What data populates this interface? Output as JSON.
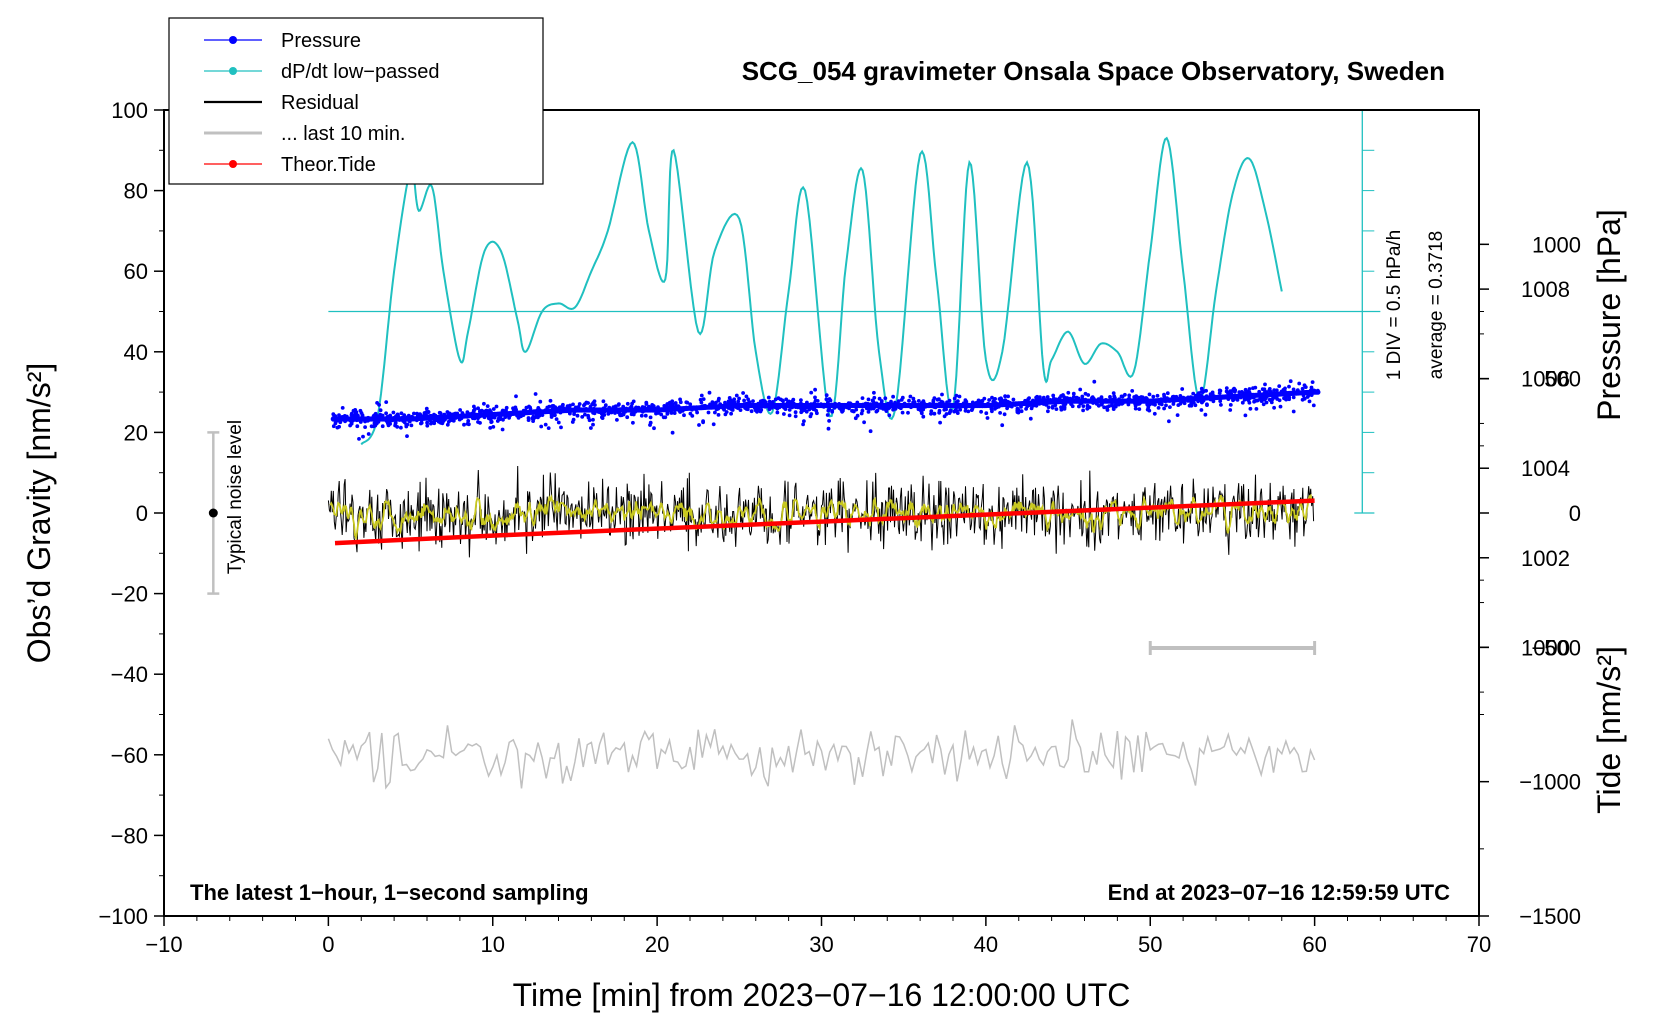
{
  "chart_data": {
    "type": "line",
    "title": "SCG_054 gravimeter Onsala Space Observatory, Sweden",
    "xlabel": "Time [min] from 2023−07−16 12:00:00 UTC",
    "ylabel": "Obs’d Gravity [nm/s²]",
    "y2label_pressure": "Pressure [hPa]",
    "y2label_tide": "Tide [nm/s²]",
    "xlim": [
      -10,
      70
    ],
    "ylim": [
      -100,
      100
    ],
    "pressure_ylim": [
      994,
      1012
    ],
    "tide_ylim": [
      -1500,
      1500
    ],
    "x_ticks": [
      -10,
      0,
      10,
      20,
      30,
      40,
      50,
      60,
      70
    ],
    "x_tick_labels": [
      "−10",
      "0",
      "10",
      "20",
      "30",
      "40",
      "50",
      "60",
      "70"
    ],
    "y_ticks": [
      -100,
      -80,
      -60,
      -40,
      -20,
      0,
      20,
      40,
      60,
      80,
      100
    ],
    "y_tick_labels": [
      "−100",
      "−80",
      "−60",
      "−40",
      "−20",
      "0",
      "20",
      "40",
      "60",
      "80",
      "100"
    ],
    "pressure_ticks": [
      1000,
      1002,
      1004,
      1006,
      1008
    ],
    "pressure_tick_labels": [
      "1000",
      "1002",
      "1004",
      "1006",
      "1008"
    ],
    "tide_ticks": [
      -1500,
      -1000,
      -500,
      0,
      500,
      1000
    ],
    "tide_tick_labels": [
      "−1500",
      "−1000",
      "−500",
      "0",
      "500",
      "1000"
    ],
    "legend": {
      "position": "top-left",
      "entries": [
        "Pressure",
        "dP/dt low−passed",
        "Residual",
        "... last 10 min.",
        "Theor.Tide"
      ]
    },
    "series": [
      {
        "name": "Pressure",
        "color": "#0000ff",
        "axis": "pressure",
        "x": [
          0,
          5,
          10,
          15,
          20,
          25,
          30,
          35,
          40,
          45,
          50,
          55,
          60
        ],
        "values": [
          1005.1,
          1005.1,
          1005.2,
          1005.3,
          1005.3,
          1005.4,
          1005.4,
          1005.4,
          1005.4,
          1005.5,
          1005.5,
          1005.6,
          1005.7
        ]
      },
      {
        "name": "dP/dt low−passed",
        "color": "#20c0c0",
        "axis": "gravity",
        "x": [
          2,
          3,
          4,
          5,
          5.5,
          6.3,
          7,
          8,
          8.5,
          9.5,
          10.5,
          11.5,
          12,
          13,
          14,
          15,
          16,
          17,
          18.5,
          19.5,
          20.5,
          21,
          22.5,
          23.5,
          25,
          26,
          27,
          28,
          29,
          30.5,
          31.5,
          32.5,
          33.5,
          34.5,
          36,
          37,
          38,
          39,
          40,
          41,
          42.5,
          43.5,
          44,
          45,
          46,
          47,
          48,
          49,
          50,
          51,
          52,
          53,
          54,
          55,
          56,
          57,
          58
        ],
        "values": [
          17,
          24,
          60,
          85,
          75,
          81,
          60,
          38,
          45,
          65,
          65,
          48,
          40,
          50,
          52,
          51,
          60,
          70,
          92,
          70,
          58,
          90,
          45,
          65,
          73,
          40,
          25,
          55,
          80,
          24,
          62,
          85,
          40,
          26,
          89,
          58,
          26,
          87,
          38,
          40,
          87,
          36,
          38,
          45,
          37,
          42,
          40,
          35,
          65,
          93,
          60,
          28,
          55,
          79,
          88,
          75,
          55
        ]
      },
      {
        "name": "Residual",
        "color": "#000000",
        "axis": "gravity",
        "x": [
          0,
          60
        ],
        "values": [
          0,
          0
        ]
      },
      {
        "name": "... last 10 min.",
        "color": "#c0c0c0",
        "axis": "gravity",
        "x": [
          0,
          60
        ],
        "values": [
          -60,
          -60
        ]
      },
      {
        "name": "Theor.Tide",
        "color": "#ff0000",
        "axis": "tide",
        "x": [
          0,
          10,
          20,
          30,
          40,
          50,
          60
        ],
        "values": [
          -112,
          -84,
          -58,
          -32,
          -6,
          20,
          46
        ]
      }
    ],
    "annotations": {
      "noise_label": "Typical noise level",
      "noise_range": [
        -20,
        20
      ],
      "noise_x": -7,
      "div_label": "1 DIV = 0.5 hPa/h",
      "average_label": "average = 0.3718",
      "footer_left": "The latest 1−hour, 1−second sampling",
      "footer_right": "End at 2023−07−16 12:59:59 UTC",
      "last10_range": [
        50,
        60
      ]
    }
  }
}
